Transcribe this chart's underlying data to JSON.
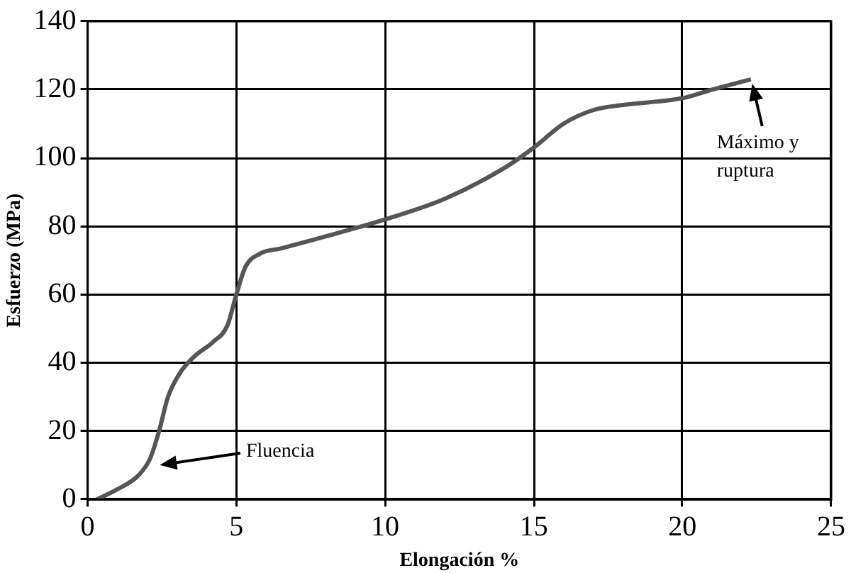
{
  "chart_data": {
    "type": "line",
    "xlabel": "Elongación %",
    "ylabel": "Esfuerzo (MPa)",
    "xlim": [
      0,
      25
    ],
    "xticks": [
      0,
      5,
      10,
      15,
      20,
      25
    ],
    "ylim": [
      0,
      140
    ],
    "yticks": [
      0,
      20,
      40,
      60,
      80,
      100,
      120,
      140
    ],
    "grid": true,
    "marker": "none",
    "line_style": "solid",
    "series": [
      {
        "color": "#555555",
        "x": [
          0.3,
          1,
          1.7,
          2.1,
          2.4,
          2.7,
          3.1,
          3.6,
          4.2,
          4.7,
          5,
          5.3,
          5.8,
          6.5,
          8,
          10,
          12,
          14,
          15,
          16,
          17,
          18,
          20,
          21,
          22.3
        ],
        "values": [
          0,
          3,
          7,
          12,
          20,
          30,
          37,
          42,
          46,
          51,
          60,
          68,
          72,
          73.5,
          77,
          82,
          88,
          97,
          103,
          110,
          114,
          115.5,
          117.5,
          120,
          123
        ]
      }
    ],
    "annotations": [
      "Fluencia",
      {
        "text": "Máximo y\nruptura",
        "x": 22.3,
        "y": 123
      }
    ]
  }
}
